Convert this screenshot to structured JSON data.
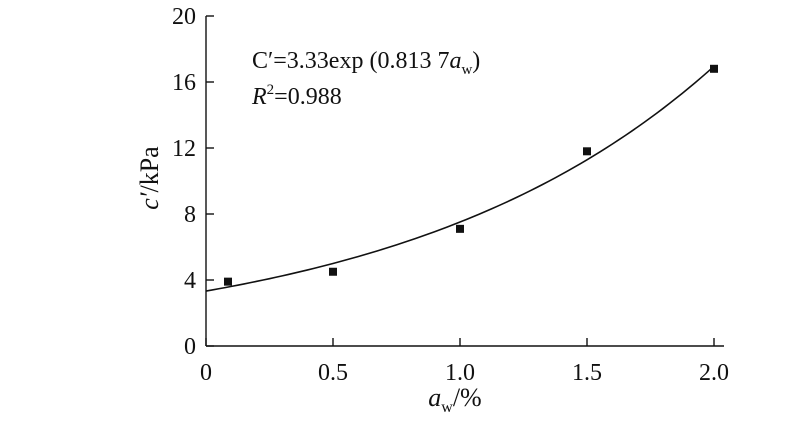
{
  "chart_data": {
    "type": "scatter",
    "xlabel": {
      "main": "a",
      "sub": "w",
      "suffix": "/%"
    },
    "ylabel": {
      "main": "c′",
      "suffix": "/kPa"
    },
    "xlim": [
      0,
      2.0
    ],
    "ylim": [
      0,
      20
    ],
    "x_ticks": [
      0,
      0.5,
      1.0,
      1.5,
      2.0
    ],
    "x_tick_labels": [
      "0",
      "0.5",
      "1.0",
      "1.5",
      "2.0"
    ],
    "y_ticks": [
      0,
      4,
      8,
      12,
      16,
      20
    ],
    "y_tick_labels": [
      "0",
      "4",
      "8",
      "12",
      "16",
      "20"
    ],
    "grid": false,
    "series": [
      {
        "type": "scatter",
        "marker": "square",
        "points": [
          {
            "x": 0,
            "y": 3.9
          },
          {
            "x": 0.5,
            "y": 4.5
          },
          {
            "x": 1.0,
            "y": 7.1
          },
          {
            "x": 1.5,
            "y": 11.8
          },
          {
            "x": 2.0,
            "y": 16.8
          }
        ]
      },
      {
        "type": "line",
        "fit": {
          "model": "exponential",
          "a": 3.33,
          "b": 0.8137
        }
      }
    ],
    "annotations": {
      "equation": {
        "lhs": "C′=3.33exp (0.813 7",
        "var": "a",
        "sub": "w",
        "close": ")"
      },
      "r2": {
        "var": "R",
        "sup": "2",
        "value": "=0.988"
      }
    }
  }
}
